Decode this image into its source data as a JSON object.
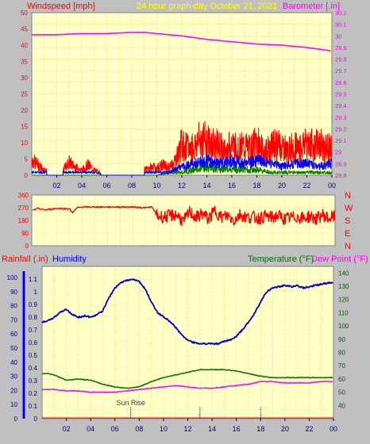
{
  "colors": {
    "background": "#c0c0c0",
    "plot_bg": "#ffffc8",
    "grid": "#e6d27a",
    "wind": "#ff0000",
    "wind_gust": "#ff0000",
    "wind_avg": "#0000ff",
    "wind_low": "#008000",
    "barometer": "#ff00ff",
    "direction": "#ff0000",
    "humidity": "#0000c8",
    "temperature": "#007000",
    "dewpoint": "#ff00ff",
    "title": "#ffff00",
    "rain_axis": "#0000ff"
  },
  "chart_data": [
    {
      "type": "line",
      "title": "24 hour graph day   October 21, 2021",
      "left_label": "Windspeed [mph]",
      "right_label": "Barometer [.in]",
      "ylim": [
        0,
        50
      ],
      "y_ticks": [
        "0",
        "5",
        "10",
        "15",
        "20",
        "25",
        "30",
        "35",
        "40",
        "45",
        "50"
      ],
      "y2lim": [
        28.8,
        30.2
      ],
      "y2_ticks": [
        "28.8",
        "28.9",
        "29",
        "29.1",
        "29.2",
        "29.3",
        "29.4",
        "29.5",
        "29.6",
        "29.7",
        "29.8",
        "29.9",
        "30",
        "30.1",
        "30.2"
      ],
      "xlim": [
        0,
        24
      ],
      "x_ticks": [
        "02",
        "04",
        "06",
        "08",
        "10",
        "12",
        "14",
        "16",
        "18",
        "20",
        "22",
        "00"
      ],
      "grid": true,
      "series": [
        {
          "name": "Barometer",
          "axis": "right",
          "x": [
            0,
            2,
            4,
            6,
            8,
            9,
            10,
            12,
            14,
            16,
            18,
            20,
            22,
            24
          ],
          "y": [
            30.01,
            30.01,
            30.02,
            30.02,
            30.03,
            30.03,
            30.02,
            30.0,
            29.97,
            29.95,
            29.93,
            29.92,
            29.9,
            29.87
          ]
        },
        {
          "name": "Gust",
          "x": [
            0,
            0.5,
            1,
            1.5,
            2,
            2.5,
            3,
            3.5,
            4,
            4.5,
            5,
            6,
            7,
            8,
            9,
            9.5,
            10,
            10.5,
            11,
            11.5,
            12,
            12.5,
            13,
            13.5,
            14,
            14.5,
            15,
            15.5,
            16,
            16.5,
            17,
            17.5,
            18,
            18.5,
            19,
            19.5,
            20,
            20.5,
            21,
            21.5,
            22,
            22.5,
            23,
            23.5,
            24
          ],
          "y": [
            6,
            4,
            2,
            1,
            3,
            2,
            5,
            3,
            2,
            4,
            2,
            0,
            0,
            0,
            2,
            3,
            3,
            4,
            3,
            6,
            12,
            10,
            11,
            14,
            13,
            12,
            11,
            9,
            12,
            10,
            11,
            10,
            13,
            9,
            10,
            12,
            11,
            9,
            12,
            10,
            14,
            11,
            12,
            10,
            11
          ]
        },
        {
          "name": "Average",
          "x": [
            0,
            1,
            2,
            3,
            4,
            5,
            6,
            8,
            9,
            10,
            11,
            11.5,
            12,
            13,
            14,
            15,
            16,
            17,
            18,
            19,
            20,
            21,
            22,
            23,
            24
          ],
          "y": [
            1,
            1,
            1,
            1,
            1,
            1,
            0,
            0,
            1,
            1,
            1,
            2,
            3,
            4,
            5,
            4,
            5,
            4,
            5,
            4,
            3,
            4,
            4,
            3,
            4
          ]
        },
        {
          "name": "Low",
          "x": [
            0,
            2,
            4,
            6,
            8,
            10,
            11,
            12,
            13,
            14,
            15,
            16,
            17,
            18,
            19,
            20,
            21,
            22,
            23,
            24
          ],
          "y": [
            0,
            0,
            0,
            0,
            0,
            0,
            1,
            1,
            2,
            3,
            2,
            2,
            2,
            2,
            1,
            1,
            1,
            1,
            1,
            1
          ]
        }
      ]
    },
    {
      "type": "line",
      "ylim": [
        0,
        360
      ],
      "y_ticks": [
        "0",
        "90",
        "180",
        "270",
        "360"
      ],
      "direction_labels": [
        "N",
        "W",
        "S",
        "E",
        "N"
      ],
      "xlim": [
        0,
        24
      ],
      "grid": true,
      "series": [
        {
          "name": "Wind Direction",
          "x": [
            0,
            0.5,
            1,
            1.5,
            2,
            3,
            3.2,
            3.6,
            4,
            5,
            6,
            7,
            8,
            9,
            9.5,
            10,
            10.5,
            11,
            11.5,
            12,
            12.5,
            13,
            13.5,
            14,
            14.5,
            15,
            15.5,
            16,
            16.5,
            17,
            17.5,
            18,
            18.5,
            19,
            19.5,
            20,
            20.5,
            21,
            21.5,
            22,
            22.5,
            23,
            23.5,
            24
          ],
          "y": [
            250,
            265,
            255,
            260,
            265,
            262,
            235,
            270,
            275,
            275,
            275,
            275,
            275,
            270,
            275,
            210,
            205,
            215,
            220,
            170,
            240,
            200,
            230,
            190,
            250,
            200,
            215,
            180,
            225,
            200,
            205,
            195,
            210,
            200,
            215,
            190,
            200,
            205,
            195,
            210,
            190,
            220,
            195,
            210
          ]
        }
      ]
    },
    {
      "type": "line",
      "left_label": "Rainfall (.in)",
      "left_label2": "Humidity",
      "right_label": "Temperature (°F)",
      "right_label2": "Dew Point (°F)",
      "ylim": [
        0,
        1.2
      ],
      "y_ticks": [
        "0",
        "0.1",
        "0.2",
        "0.3",
        "0.4",
        "0.5",
        "0.6",
        "0.7",
        "0.8",
        "0.9",
        "1",
        "1.1"
      ],
      "y_rain_ticks": [
        "0",
        "10",
        "20",
        "30",
        "40",
        "50",
        "60",
        "70",
        "80",
        "90",
        "100"
      ],
      "y2lim": [
        30,
        145
      ],
      "y2_ticks": [
        "40",
        "50",
        "60",
        "70",
        "80",
        "90",
        "100",
        "110",
        "120",
        "130",
        "140"
      ],
      "xlim": [
        0,
        24
      ],
      "x_ticks": [
        "02",
        "04",
        "06",
        "08",
        "10",
        "12",
        "14",
        "16",
        "18",
        "20",
        "22",
        "00"
      ],
      "grid": true,
      "annotations": [
        {
          "text": "Sun Rise",
          "x": 7.3
        }
      ],
      "markers_x": [
        7.3,
        13,
        18
      ],
      "series": [
        {
          "name": "Humidity",
          "axis": "left",
          "x": [
            0,
            0.5,
            1,
            1.5,
            2,
            2.5,
            3,
            3.5,
            4,
            4.5,
            5,
            5.5,
            6,
            6.5,
            7,
            7.5,
            8,
            8.5,
            9,
            9.5,
            10,
            10.5,
            11,
            11.5,
            12,
            12.5,
            13,
            13.5,
            14,
            14.5,
            15,
            15.5,
            16,
            16.5,
            17,
            17.5,
            18,
            18.5,
            19,
            19.5,
            20,
            20.5,
            21,
            21.5,
            22,
            22.5,
            23,
            23.5,
            24
          ],
          "y": [
            0.76,
            0.77,
            0.8,
            0.84,
            0.86,
            0.82,
            0.8,
            0.81,
            0.8,
            0.82,
            0.85,
            0.95,
            1.03,
            1.07,
            1.09,
            1.1,
            1.08,
            1.02,
            0.92,
            0.84,
            0.8,
            0.77,
            0.72,
            0.66,
            0.62,
            0.6,
            0.59,
            0.59,
            0.59,
            0.59,
            0.61,
            0.62,
            0.65,
            0.7,
            0.76,
            0.83,
            0.92,
            1.0,
            1.03,
            1.04,
            1.05,
            1.04,
            1.05,
            1.03,
            1.04,
            1.05,
            1.06,
            1.07,
            1.07
          ]
        },
        {
          "name": "Temperature",
          "axis": "right",
          "x": [
            0,
            0.5,
            1,
            1.5,
            2,
            3,
            4,
            5,
            6,
            7,
            8,
            9,
            10,
            11,
            12,
            13,
            14,
            15,
            16,
            17,
            18,
            19,
            20,
            21,
            22,
            23,
            24
          ],
          "y": [
            64,
            64,
            63,
            61,
            59,
            60,
            59,
            56,
            54,
            53,
            54,
            58,
            61,
            63,
            65,
            67,
            67,
            67,
            66,
            64,
            62,
            61,
            61,
            61,
            61,
            61,
            61
          ]
        },
        {
          "name": "Dew Point",
          "axis": "right",
          "x": [
            0,
            1,
            2,
            3,
            4,
            5,
            6,
            7,
            8,
            9,
            10,
            11,
            12,
            13,
            14,
            15,
            16,
            17,
            18,
            19,
            20,
            21,
            22,
            23,
            24
          ],
          "y": [
            52,
            52,
            51,
            51,
            50,
            50,
            50,
            51,
            52,
            53,
            54,
            55,
            54,
            53,
            53,
            54,
            55,
            56,
            58,
            58,
            57,
            57,
            57,
            58,
            58
          ]
        },
        {
          "name": "Rainfall",
          "axis": "left",
          "x": [
            0,
            24
          ],
          "y": [
            0,
            0
          ]
        }
      ]
    }
  ]
}
